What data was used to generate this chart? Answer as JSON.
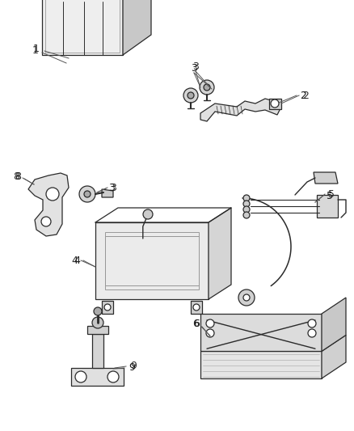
{
  "background_color": "#ffffff",
  "line_color": "#2a2a2a",
  "label_color": "#1a1a1a",
  "figure_width": 4.39,
  "figure_height": 5.33,
  "dpi": 100
}
